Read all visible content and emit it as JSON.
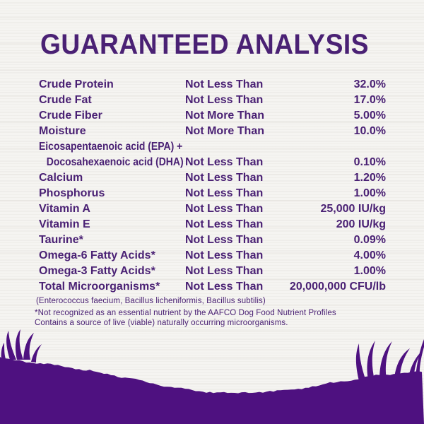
{
  "title": "GUARANTEED ANALYSIS",
  "colors": {
    "text": "#4a2174",
    "grass": "#4e1180",
    "background": "#f5f4f1"
  },
  "table": {
    "rows": [
      {
        "name": "Crude Protein",
        "qualifier": "Not Less Than",
        "value": "32.0%"
      },
      {
        "name": "Crude Fat",
        "qualifier": "Not Less Than",
        "value": "17.0%"
      },
      {
        "name": "Crude Fiber",
        "qualifier": "Not More Than",
        "value": "5.00%"
      },
      {
        "name": "Moisture",
        "qualifier": "Not More Than",
        "value": "10.0%"
      },
      {
        "name": "Eicosapentaenoic acid (EPA) +",
        "name2": "Docosahexaenoic acid (DHA)",
        "qualifier": "Not Less Than",
        "value": "0.10%"
      },
      {
        "name": "Calcium",
        "qualifier": "Not Less Than",
        "value": "1.20%"
      },
      {
        "name": "Phosphorus",
        "qualifier": "Not Less Than",
        "value": "1.00%"
      },
      {
        "name": "Vitamin A",
        "qualifier": "Not Less Than",
        "value": "25,000 IU/kg"
      },
      {
        "name": "Vitamin E",
        "qualifier": "Not Less Than",
        "value": "200 IU/kg"
      },
      {
        "name": "Taurine*",
        "qualifier": "Not Less Than",
        "value": "0.09%"
      },
      {
        "name": "Omega-6 Fatty Acids*",
        "qualifier": "Not Less Than",
        "value": "4.00%"
      },
      {
        "name": "Omega-3 Fatty Acids*",
        "qualifier": "Not Less Than",
        "value": "1.00%"
      },
      {
        "name": "Total Microorganisms*",
        "qualifier": "Not Less Than",
        "value": "20,000,000 CFU/lb"
      }
    ],
    "microorganism_species": "(Enterococcus faecium, Bacillus licheniformis, Bacillus subtilis)"
  },
  "footnotes": {
    "line1": "*Not recognized as an essential nutrient by the AAFCO Dog Food Nutrient Profiles",
    "line2": "Contains a source of live (viable) naturally occurring microorganisms."
  }
}
